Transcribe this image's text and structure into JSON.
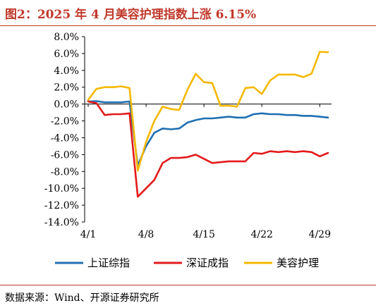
{
  "header": {
    "title": "图2：2025 年 4 月美容护理指数上涨 6.15%"
  },
  "footer": {
    "source": "数据来源：Wind、开源证券研究所"
  },
  "chart_data": {
    "type": "line",
    "title": "",
    "xlabel": "",
    "ylabel": "",
    "ylim": [
      -14,
      8
    ],
    "ytick_step": 2,
    "ytick_suffix": "%",
    "grid": false,
    "legend_position": "bottom",
    "x_ticks": [
      "4/1",
      "4/8",
      "4/15",
      "4/22",
      "4/29"
    ],
    "x": [
      "4/1",
      "4/2",
      "4/3",
      "4/4",
      "4/5",
      "4/6",
      "4/7",
      "4/8",
      "4/9",
      "4/10",
      "4/11",
      "4/12",
      "4/13",
      "4/14",
      "4/15",
      "4/16",
      "4/17",
      "4/18",
      "4/19",
      "4/20",
      "4/21",
      "4/22",
      "4/23",
      "4/24",
      "4/25",
      "4/26",
      "4/27",
      "4/28",
      "4/29",
      "4/30"
    ],
    "series": [
      {
        "name": "上证综指",
        "color": "#1f6fb2",
        "values": [
          0.3,
          0.35,
          0.2,
          0.2,
          0.2,
          0.3,
          -7.3,
          -5.0,
          -3.4,
          -2.9,
          -3.0,
          -2.9,
          -2.2,
          -1.9,
          -1.7,
          -1.7,
          -1.6,
          -1.5,
          -1.6,
          -1.6,
          -1.2,
          -1.1,
          -1.2,
          -1.2,
          -1.3,
          -1.3,
          -1.4,
          -1.4,
          -1.5,
          -1.6
        ]
      },
      {
        "name": "深证成指",
        "color": "#e31a1c",
        "values": [
          0.3,
          0.1,
          -1.3,
          -1.2,
          -1.2,
          -1.1,
          -11.0,
          -10.0,
          -9.0,
          -7.0,
          -6.4,
          -6.4,
          -6.3,
          -6.0,
          -6.5,
          -7.0,
          -6.9,
          -6.8,
          -6.8,
          -6.8,
          -5.8,
          -5.9,
          -5.6,
          -5.7,
          -5.6,
          -5.7,
          -5.6,
          -5.7,
          -6.2,
          -5.8
        ]
      },
      {
        "name": "美容护理",
        "color": "#f5b800",
        "values": [
          0.5,
          1.8,
          2.0,
          2.0,
          2.1,
          1.9,
          -7.9,
          -4.5,
          -2.0,
          -0.3,
          -0.6,
          -0.7,
          1.7,
          3.6,
          2.6,
          2.5,
          -0.2,
          -0.2,
          -0.3,
          1.9,
          2.0,
          1.2,
          2.8,
          3.5,
          3.5,
          3.5,
          3.2,
          3.6,
          6.2,
          6.15
        ]
      }
    ]
  }
}
